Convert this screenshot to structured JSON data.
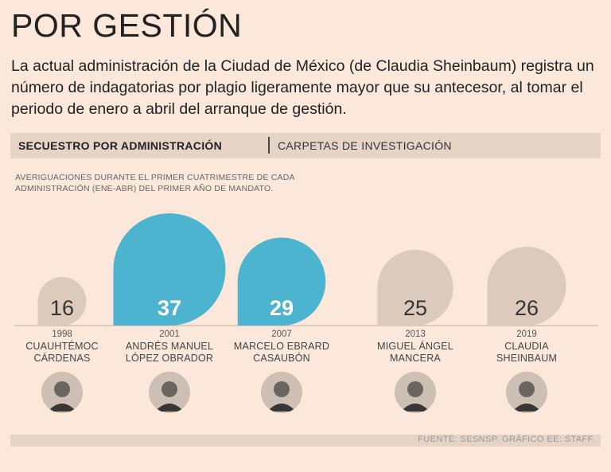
{
  "title": "POR GESTIÓN",
  "subtitle": "La actual administración de la Ciudad de México (de Claudia Sheinbaum) registra un número de indagatorias por plagio ligeramente mayor que su antecesor, al tomar el periodo de enero a abril del arranque de gestión.",
  "section_label": "SECUESTRO POR ADMINISTRACIÓN",
  "section_sublabel": "CARPETAS DE INVESTIGACIÓN",
  "note": "AVERIGUACIONES DURANTE EL PRIMER CUATRIMESTRE DE CADA ADMINISTRACIÓN (ENE-ABR) DEL PRIMER AÑO DE MANDATO.",
  "source": "FUENTE: SESNSP. GRÁFICO EE: STAFF.",
  "colors": {
    "highlight": "#4db4d0",
    "normal": "#dccbbd",
    "background": "#fbe8da"
  },
  "chart_data": {
    "type": "bar",
    "title": "SECUESTRO POR ADMINISTRACIÓN",
    "ylabel": "CARPETAS DE INVESTIGACIÓN",
    "categories": [
      "1998",
      "2001",
      "2007",
      "2013",
      "2019"
    ],
    "values": [
      16,
      37,
      29,
      25,
      26
    ],
    "highlighted": [
      false,
      true,
      true,
      false,
      false
    ],
    "ylim": [
      0,
      37
    ]
  },
  "administrations": [
    {
      "year": "1998",
      "name_line1": "CUAUHTÉMOC",
      "name_line2": "CÁRDENAS",
      "portrait_icon": "portrait-icon"
    },
    {
      "year": "2001",
      "name_line1": "ANDRÉS MANUEL",
      "name_line2": "LÓPEZ OBRADOR",
      "portrait_icon": "portrait-icon"
    },
    {
      "year": "2007",
      "name_line1": "MARCELO EBRARD",
      "name_line2": "CASAUBÓN",
      "portrait_icon": "portrait-icon"
    },
    {
      "year": "2013",
      "name_line1": "MIGUEL ÁNGEL",
      "name_line2": "MANCERA",
      "portrait_icon": "portrait-icon"
    },
    {
      "year": "2019",
      "name_line1": "CLAUDIA",
      "name_line2": "SHEINBAUM",
      "portrait_icon": "portrait-icon"
    }
  ]
}
